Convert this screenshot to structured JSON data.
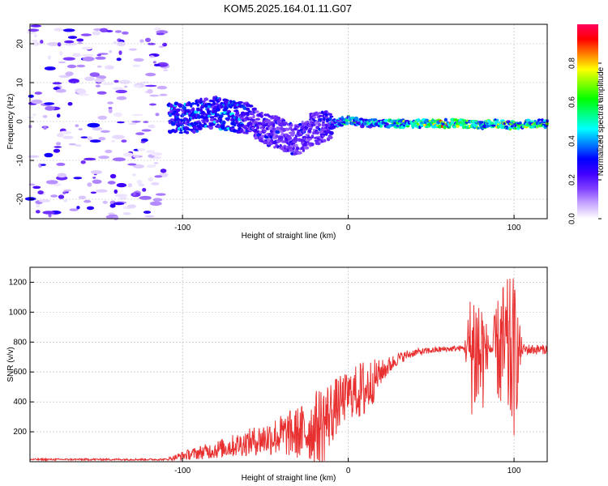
{
  "title": "KOM5.2025.164.01.11.G07",
  "chart_data": [
    {
      "type": "heatmap",
      "xlabel": "Height of straight line (km)",
      "ylabel": "Frequency (Hz)",
      "xlim": [
        -192,
        120
      ],
      "ylim": [
        -25,
        25
      ],
      "xticks": [
        -100,
        0,
        100
      ],
      "yticks": [
        -20,
        -10,
        0,
        10,
        20
      ],
      "colorbar": {
        "label": "Normalized spectral amplitude",
        "range": [
          0,
          1
        ],
        "ticks": [
          0.0,
          0.2,
          0.4,
          0.6,
          0.8
        ],
        "colors": [
          "#ffffff",
          "#c8a8ff",
          "#8040ff",
          "#4000ff",
          "#0000ff",
          "#0080ff",
          "#00ffff",
          "#00ff80",
          "#00ff00",
          "#80ff00",
          "#ffff00",
          "#ff8000",
          "#ff0000",
          "#ff0060"
        ]
      },
      "scattered_noise": {
        "x_range": [
          -192,
          -110
        ],
        "y_range": [
          -25,
          25
        ],
        "amplitude_range": [
          0.02,
          0.3
        ]
      },
      "ridge": [
        {
          "x": -108,
          "y": 0.5,
          "amp": 0.45
        },
        {
          "x": -95,
          "y": 1.0,
          "amp": 0.45
        },
        {
          "x": -82,
          "y": 2.5,
          "amp": 0.4
        },
        {
          "x": -72,
          "y": 1.5,
          "amp": 0.5
        },
        {
          "x": -62,
          "y": 1.0,
          "amp": 0.35
        },
        {
          "x": -52,
          "y": -1.5,
          "amp": 0.3
        },
        {
          "x": -42,
          "y": -3.0,
          "amp": 0.3
        },
        {
          "x": -32,
          "y": -5.0,
          "amp": 0.3
        },
        {
          "x": -22,
          "y": -2.0,
          "amp": 0.3
        },
        {
          "x": -12,
          "y": -1.0,
          "amp": 0.35
        },
        {
          "x": 0,
          "y": 0.5,
          "amp": 0.6
        },
        {
          "x": 10,
          "y": -0.5,
          "amp": 0.5
        },
        {
          "x": 25,
          "y": -0.5,
          "amp": 0.6
        },
        {
          "x": 40,
          "y": -0.5,
          "amp": 0.7
        },
        {
          "x": 55,
          "y": -0.5,
          "amp": 0.85
        },
        {
          "x": 70,
          "y": -0.5,
          "amp": 0.8
        },
        {
          "x": 80,
          "y": -1.0,
          "amp": 0.6
        },
        {
          "x": 90,
          "y": -0.5,
          "amp": 0.75
        },
        {
          "x": 100,
          "y": -1.0,
          "amp": 0.6
        },
        {
          "x": 110,
          "y": -0.5,
          "amp": 0.7
        },
        {
          "x": 120,
          "y": -0.5,
          "amp": 0.65
        }
      ]
    },
    {
      "type": "line",
      "xlabel": "Height of straight line (km)",
      "ylabel": "SNR (v/v)",
      "xlim": [
        -192,
        120
      ],
      "ylim": [
        0,
        1300
      ],
      "xticks": [
        -100,
        0,
        100
      ],
      "yticks": [
        200,
        400,
        600,
        800,
        1000,
        1200
      ],
      "color": "#e83030",
      "envelope": [
        {
          "x": -192,
          "base": 15,
          "noise": 6
        },
        {
          "x": -110,
          "base": 15,
          "noise": 6
        },
        {
          "x": -100,
          "base": 40,
          "noise": 30
        },
        {
          "x": -80,
          "base": 80,
          "noise": 60
        },
        {
          "x": -60,
          "base": 130,
          "noise": 90
        },
        {
          "x": -40,
          "base": 180,
          "noise": 140
        },
        {
          "x": -25,
          "base": 200,
          "noise": 200
        },
        {
          "x": -15,
          "base": 260,
          "noise": 280
        },
        {
          "x": -8,
          "base": 360,
          "noise": 200
        },
        {
          "x": 0,
          "base": 450,
          "noise": 150
        },
        {
          "x": 10,
          "base": 480,
          "noise": 220
        },
        {
          "x": 20,
          "base": 600,
          "noise": 80
        },
        {
          "x": 30,
          "base": 690,
          "noise": 40
        },
        {
          "x": 40,
          "base": 730,
          "noise": 25
        },
        {
          "x": 55,
          "base": 750,
          "noise": 20
        },
        {
          "x": 70,
          "base": 760,
          "noise": 20
        },
        {
          "x": 75,
          "base": 760,
          "noise": 500
        },
        {
          "x": 80,
          "base": 700,
          "noise": 500
        },
        {
          "x": 85,
          "base": 760,
          "noise": 40
        },
        {
          "x": 92,
          "base": 750,
          "noise": 450
        },
        {
          "x": 100,
          "base": 700,
          "noise": 550
        },
        {
          "x": 105,
          "base": 750,
          "noise": 40
        },
        {
          "x": 120,
          "base": 750,
          "noise": 30
        }
      ]
    }
  ]
}
